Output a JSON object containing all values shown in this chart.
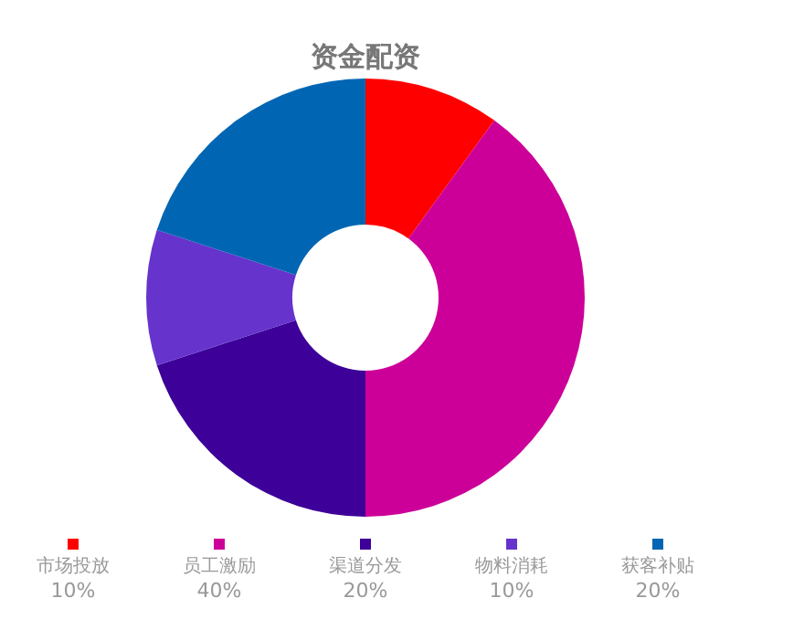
{
  "chart_data": {
    "type": "donut",
    "title": "资金配资",
    "categories": [
      "市场投放",
      "员工激励",
      "渠道分发",
      "物料消耗",
      "获客补贴"
    ],
    "values": [
      10,
      40,
      20,
      10,
      20
    ],
    "value_labels": [
      "10%",
      "40%",
      "20%",
      "10%",
      "20%"
    ],
    "colors": [
      "#ff0000",
      "#cc0099",
      "#3d0099",
      "#6633cc",
      "#0066b3"
    ],
    "legend": "bottom"
  }
}
